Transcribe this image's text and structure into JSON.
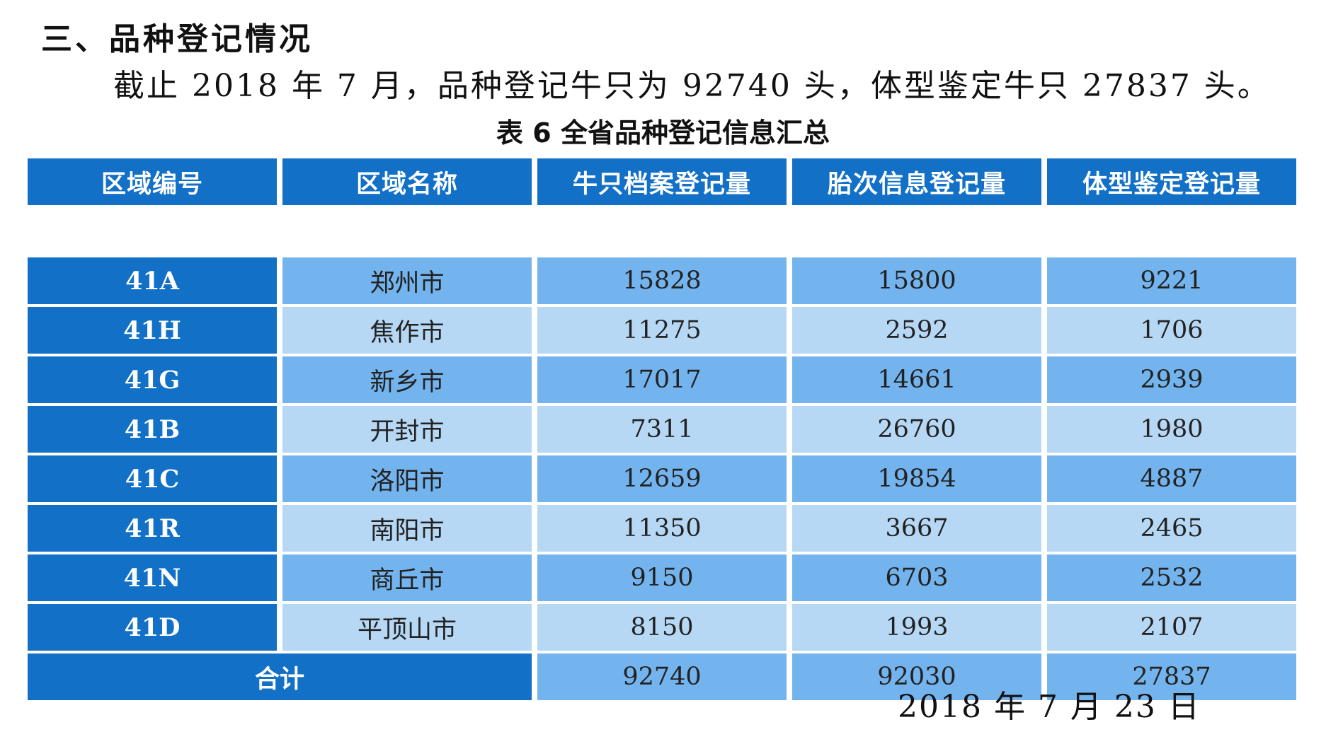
{
  "section_heading": "三、品种登记情况",
  "summary_text": "截止 2018 年 7 月，品种登记牛只为 92740 头，体型鉴定牛只 27837 头。",
  "table_caption": "表 6 全省品种登记信息汇总",
  "table": {
    "headers": [
      "区域编号",
      "区域名称",
      "牛只档案登记量",
      "胎次信息登记量",
      "体型鉴定登记量"
    ],
    "rows": [
      {
        "code": "41A",
        "name": "郑州市",
        "archive": "15828",
        "parity": "15800",
        "conformation": "9221"
      },
      {
        "code": "41H",
        "name": "焦作市",
        "archive": "11275",
        "parity": "2592",
        "conformation": "1706"
      },
      {
        "code": "41G",
        "name": "新乡市",
        "archive": "17017",
        "parity": "14661",
        "conformation": "2939"
      },
      {
        "code": "41B",
        "name": "开封市",
        "archive": "7311",
        "parity": "26760",
        "conformation": "1980"
      },
      {
        "code": "41C",
        "name": "洛阳市",
        "archive": "12659",
        "parity": "19854",
        "conformation": "4887"
      },
      {
        "code": "41R",
        "name": "南阳市",
        "archive": "11350",
        "parity": "3667",
        "conformation": "2465"
      },
      {
        "code": "41N",
        "name": "商丘市",
        "archive": "9150",
        "parity": "6703",
        "conformation": "2532"
      },
      {
        "code": "41D",
        "name": "平顶山市",
        "archive": "8150",
        "parity": "1993",
        "conformation": "2107"
      }
    ],
    "total": {
      "label": "合计",
      "archive": "92740",
      "parity": "92030",
      "conformation": "27837"
    }
  },
  "date_line": "2018 年 7 月 23 日",
  "colors": {
    "header_dark_blue": "#1270c6",
    "row_medium_blue": "#74b4ee",
    "row_light_blue": "#b7d8f5"
  }
}
